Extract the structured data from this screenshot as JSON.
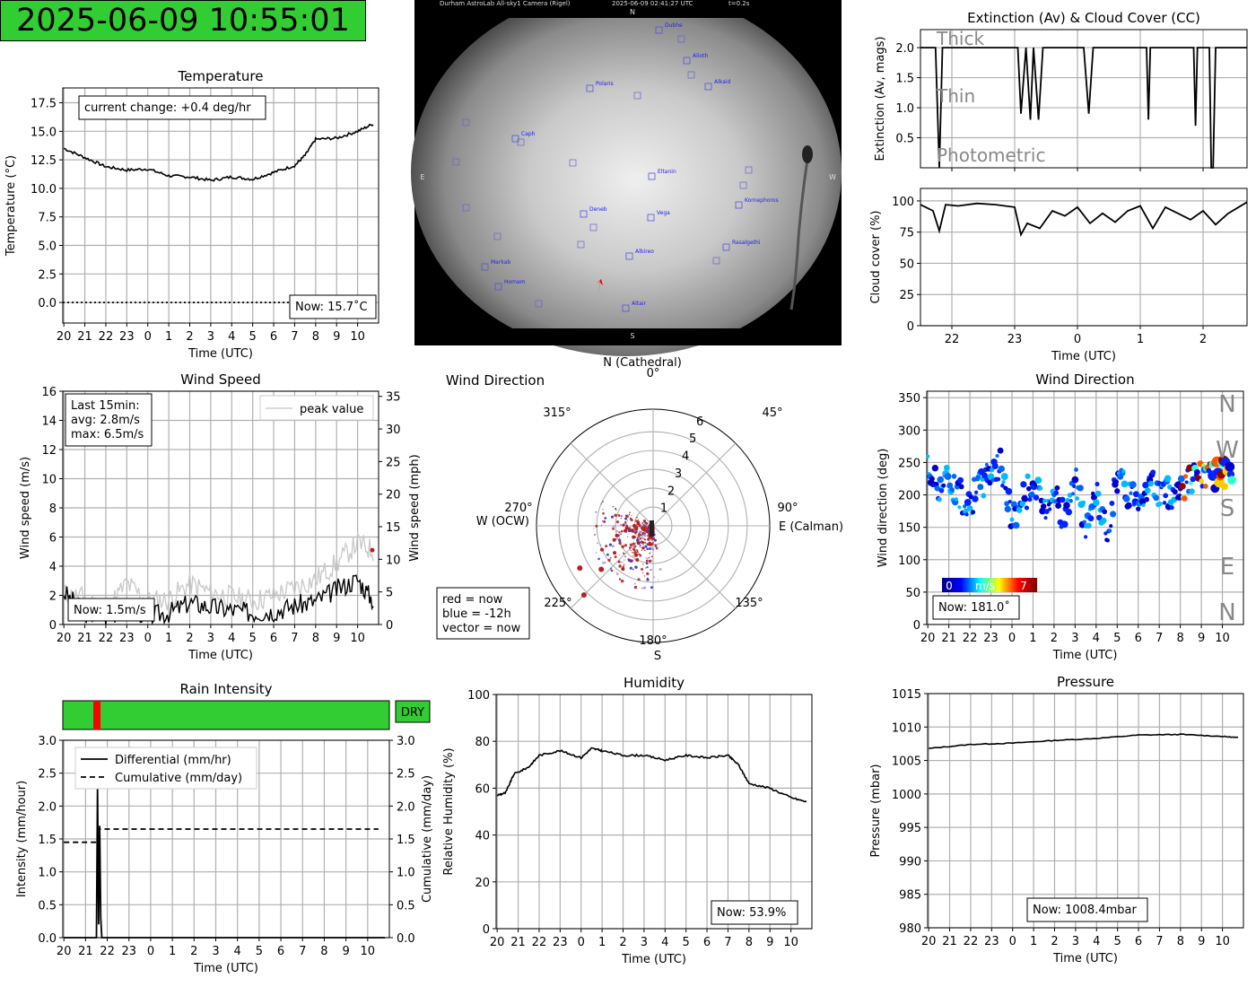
{
  "clock": {
    "text": "2025-06-09 10:55:01"
  },
  "colors": {
    "dry_green": "#32cd32",
    "rain_red": "#ff0000",
    "grid": "#b0b0b0",
    "now_series": "#b22222",
    "old_series": "#0000ff"
  },
  "temperature": {
    "title": "Temperature",
    "ylabel": "Temperature (°C)",
    "xlabel": "Time (UTC)",
    "ticks_y": [
      "0.0",
      "2.5",
      "5.0",
      "7.5",
      "10.0",
      "12.5",
      "15.0",
      "17.5"
    ],
    "ticks_x": [
      "20",
      "21",
      "22",
      "23",
      "0",
      "1",
      "2",
      "3",
      "4",
      "5",
      "6",
      "7",
      "8",
      "9",
      "10"
    ],
    "change_box": "current change: +0.4 deg/hr",
    "now_box": "Now: 15.7˚C"
  },
  "camera": {
    "header_left": "Durham AstroLab All-sky1 Camera (Rigel)",
    "header_mid": "2025-06-09 02:41:27 UTC",
    "header_right": "t=0.2s",
    "compass": {
      "n": "N",
      "s": "S",
      "e": "E",
      "w": "W"
    },
    "stars": [
      "Dubhe",
      "Alioth",
      "Alkaid",
      "Polaris",
      "Caph",
      "Eltanin",
      "Kornephoros",
      "Deneb",
      "Vega",
      "Rasalgethi",
      "Albireo",
      "Markab",
      "Homam",
      "Altair"
    ]
  },
  "extinction": {
    "title": "Extinction (Av) & Cloud Cover (CC)",
    "ylabel": "Extinction (Av, mags)",
    "ticks_y": [
      "0.5",
      "1.0",
      "1.5",
      "2.0"
    ],
    "labels": {
      "thick": "Thick",
      "thin": "Thin",
      "photometric": "Photometric"
    }
  },
  "cloud": {
    "ylabel": "Cloud cover (%)",
    "xlabel": "Time (UTC)",
    "ticks_y": [
      "0",
      "25",
      "50",
      "75",
      "100"
    ],
    "ticks_x": [
      "22",
      "23",
      "0",
      "1",
      "2"
    ]
  },
  "wind_speed": {
    "title": "Wind Speed",
    "ylabel": "Wind speed (m/s)",
    "ylabel_right": "Wind speed (mph)",
    "xlabel": "Time (UTC)",
    "ticks_y": [
      "0",
      "2",
      "4",
      "6",
      "8",
      "10",
      "12",
      "14",
      "16"
    ],
    "ticks_y_right": [
      "0",
      "5",
      "10",
      "15",
      "20",
      "25",
      "30",
      "35"
    ],
    "ticks_x": [
      "20",
      "21",
      "22",
      "23",
      "0",
      "1",
      "2",
      "3",
      "4",
      "5",
      "6",
      "7",
      "8",
      "9",
      "10"
    ],
    "stats": [
      "Last 15min:",
      "avg: 2.8m/s",
      "max: 6.5m/s"
    ],
    "legend": "peak value",
    "now_box": "Now: 1.5m/s"
  },
  "wind_polar": {
    "title": "Wind Direction",
    "n_label": "N (Cathedral)",
    "e_label": "E (Calman)",
    "w_label": "W (OCW)",
    "s_label": "S",
    "angles": [
      "0°",
      "45°",
      "90°",
      "135°",
      "180°",
      "225°",
      "270°",
      "315°"
    ],
    "radii": [
      "1",
      "2",
      "3",
      "4",
      "5",
      "6"
    ],
    "legend": [
      "red = now",
      "blue = -12h",
      "vector = now"
    ]
  },
  "wind_dir": {
    "title": "Wind Direction",
    "ylabel": "Wind direction (deg)",
    "xlabel": "Time (UTC)",
    "ticks_y": [
      "0",
      "50",
      "100",
      "150",
      "200",
      "250",
      "300",
      "350"
    ],
    "ticks_x": [
      "20",
      "21",
      "22",
      "23",
      "0",
      "1",
      "2",
      "3",
      "4",
      "5",
      "6",
      "7",
      "8",
      "9",
      "10"
    ],
    "compass": [
      "N",
      "W",
      "S",
      "E",
      "N"
    ],
    "colorbar": {
      "min": "0",
      "unit": "m/s",
      "max": "7"
    },
    "now_box": "Now: 181.0˚"
  },
  "rain": {
    "title": "Rain Intensity",
    "status": "DRY",
    "ylabel": "Intensity (mm/hour)",
    "ylabel_right": "Cumulative (mm/day)",
    "xlabel": "Time (UTC)",
    "ticks_y": [
      "0.0",
      "0.5",
      "1.0",
      "1.5",
      "2.0",
      "2.5",
      "3.0"
    ],
    "ticks_x": [
      "20",
      "21",
      "22",
      "23",
      "0",
      "1",
      "2",
      "3",
      "4",
      "5",
      "6",
      "7",
      "8",
      "9",
      "10"
    ],
    "legend": [
      "Differential (mm/hr)",
      "Cumulative (mm/day)"
    ]
  },
  "humidity": {
    "title": "Humidity",
    "ylabel": "Relative Humidity (%)",
    "xlabel": "Time (UTC)",
    "ticks_y": [
      "0",
      "20",
      "40",
      "60",
      "80",
      "100"
    ],
    "ticks_x": [
      "20",
      "21",
      "22",
      "23",
      "0",
      "1",
      "2",
      "3",
      "4",
      "5",
      "6",
      "7",
      "8",
      "9",
      "10"
    ],
    "now_box": "Now: 53.9%"
  },
  "pressure": {
    "title": "Pressure",
    "ylabel": "Pressure (mbar)",
    "xlabel": "Time (UTC)",
    "ticks_y": [
      "980",
      "985",
      "990",
      "995",
      "1000",
      "1005",
      "1010",
      "1015"
    ],
    "ticks_x": [
      "20",
      "21",
      "22",
      "23",
      "0",
      "1",
      "2",
      "3",
      "4",
      "5",
      "6",
      "7",
      "8",
      "9",
      "10"
    ],
    "now_box": "Now: 1008.4mbar"
  },
  "chart_data": [
    {
      "type": "line",
      "name": "temperature",
      "ylim": [
        -1.8,
        18.8
      ],
      "x_hours": [
        -4,
        -3,
        -2,
        -1,
        0,
        1,
        2,
        3,
        4,
        5,
        6,
        7,
        7.5,
        8,
        9,
        10,
        10.8
      ],
      "values": [
        13.5,
        12.7,
        11.9,
        11.6,
        11.7,
        11.1,
        11.0,
        10.7,
        11.0,
        10.8,
        11.4,
        12.0,
        12.9,
        14.3,
        14.4,
        15.0,
        15.7
      ]
    },
    {
      "type": "line",
      "name": "extinction",
      "ylim": [
        0,
        2.3
      ],
      "x_hours": [
        -2.5,
        -2.26,
        -2.2,
        -2.15,
        -0.95,
        -0.9,
        -0.82,
        -0.75,
        -0.7,
        -0.62,
        -0.55,
        0.1,
        0.18,
        0.25,
        1.1,
        1.13,
        1.16,
        1.85,
        1.88,
        1.91,
        2.1,
        2.13,
        2.16,
        2.2,
        2.7
      ],
      "values": [
        2.0,
        2.0,
        0.0,
        2.0,
        2.0,
        0.9,
        2.0,
        0.8,
        2.0,
        0.8,
        2.0,
        2.0,
        0.9,
        2.0,
        2.0,
        0.8,
        2.0,
        2.0,
        0.7,
        2.0,
        2.0,
        0.0,
        0.0,
        2.0,
        2.0
      ]
    },
    {
      "type": "line",
      "name": "cloud_cover",
      "ylim": [
        0,
        110
      ],
      "x_hours": [
        -2.5,
        -2.3,
        -2.2,
        -2.1,
        -1.9,
        -1.6,
        -1.3,
        -1.0,
        -0.9,
        -0.8,
        -0.6,
        -0.4,
        -0.2,
        0.0,
        0.2,
        0.4,
        0.6,
        0.8,
        1.0,
        1.2,
        1.4,
        1.6,
        1.8,
        2.0,
        2.2,
        2.4,
        2.7
      ],
      "values": [
        97,
        92,
        76,
        97,
        96,
        98,
        97,
        95,
        73,
        82,
        78,
        92,
        88,
        95,
        82,
        90,
        83,
        92,
        96,
        78,
        95,
        90,
        85,
        92,
        81,
        90,
        99
      ]
    },
    {
      "type": "line",
      "name": "wind_speed",
      "ylim": [
        0,
        16
      ],
      "x_hours": [
        -4,
        -3,
        -2,
        -1,
        0,
        1,
        2,
        3,
        4,
        5,
        6,
        7,
        8,
        9,
        10,
        10.8
      ],
      "values": [
        2.2,
        0.8,
        0.5,
        1.2,
        0.6,
        0.8,
        1.5,
        1.2,
        1.0,
        0.8,
        0.9,
        1.3,
        1.6,
        2.4,
        3.1,
        1.5
      ]
    },
    {
      "type": "line",
      "name": "wind_peak",
      "ylim": [
        0,
        16
      ],
      "x_hours": [
        -4,
        -3,
        -2,
        -1,
        0,
        1,
        2,
        3,
        4,
        5,
        6,
        7,
        8,
        9,
        10,
        10.8
      ],
      "values": [
        2.1,
        1.8,
        1.0,
        2.8,
        1.6,
        1.7,
        2.8,
        2.2,
        1.9,
        1.6,
        2.0,
        2.5,
        3.1,
        4.2,
        5.6,
        5.0
      ]
    },
    {
      "type": "scatter",
      "name": "wind_direction",
      "ylim": [
        0,
        360
      ],
      "x_hours": [
        -4,
        -3.5,
        -3,
        -2.5,
        -2,
        -1.5,
        -1,
        -0.5,
        0,
        0.5,
        1,
        1.5,
        2,
        2.5,
        3,
        3.5,
        4,
        4.5,
        5,
        5.5,
        6,
        6.5,
        7,
        7.5,
        8,
        8.5,
        9,
        9.5,
        10,
        10.5
      ],
      "values": [
        240,
        215,
        225,
        200,
        190,
        215,
        240,
        245,
        160,
        195,
        220,
        180,
        210,
        160,
        225,
        150,
        200,
        140,
        230,
        205,
        200,
        215,
        205,
        200,
        215,
        225,
        230,
        225,
        230,
        220
      ]
    },
    {
      "type": "line",
      "name": "rain_intensity",
      "ylim": [
        0,
        3.0
      ],
      "x_hours": [
        -4,
        -2.5,
        -2.45,
        -2.4,
        -2.35,
        -2.3,
        -2.25,
        10.8
      ],
      "values": [
        0,
        0,
        2.3,
        0.2,
        1.7,
        0.3,
        0,
        0
      ]
    },
    {
      "type": "line",
      "name": "rain_cumulative",
      "ylim": [
        0,
        3.0
      ],
      "x_hours": [
        -4,
        -2.4,
        -2.4,
        10.5
      ],
      "values": [
        1.45,
        1.45,
        1.65,
        1.65
      ]
    },
    {
      "type": "line",
      "name": "humidity",
      "ylim": [
        0,
        100
      ],
      "x_hours": [
        -4,
        -3.6,
        -3.2,
        -2.5,
        -2,
        -1,
        0,
        0.5,
        1,
        2,
        3,
        4,
        5,
        6,
        7,
        7.5,
        8,
        9,
        10,
        10.8
      ],
      "values": [
        57,
        58,
        66,
        69,
        74,
        76,
        73,
        77,
        76,
        74,
        74,
        72,
        74,
        73,
        74,
        70,
        62,
        60,
        56,
        54
      ]
    },
    {
      "type": "line",
      "name": "pressure",
      "ylim": [
        980,
        1015
      ],
      "x_hours": [
        -4,
        -2,
        0,
        2,
        4,
        6,
        8,
        10,
        10.8
      ],
      "values": [
        1006.8,
        1007.4,
        1007.6,
        1008.0,
        1008.3,
        1008.8,
        1008.9,
        1008.6,
        1008.4
      ]
    },
    {
      "type": "scatter",
      "name": "wind_polar",
      "rlim": [
        0,
        6
      ],
      "angles_deg": [
        200,
        220,
        235,
        245,
        255,
        260,
        270,
        280,
        240,
        225,
        210,
        190,
        230,
        250,
        265,
        215,
        205,
        195,
        240,
        260
      ],
      "radii": [
        0.5,
        1.2,
        2.5,
        3.0,
        2.0,
        1.5,
        1.0,
        0.8,
        4.5,
        5.2,
        1.8,
        1.0,
        3.6,
        2.2,
        1.4,
        2.8,
        2.0,
        0.6,
        1.2,
        0.9
      ]
    }
  ]
}
